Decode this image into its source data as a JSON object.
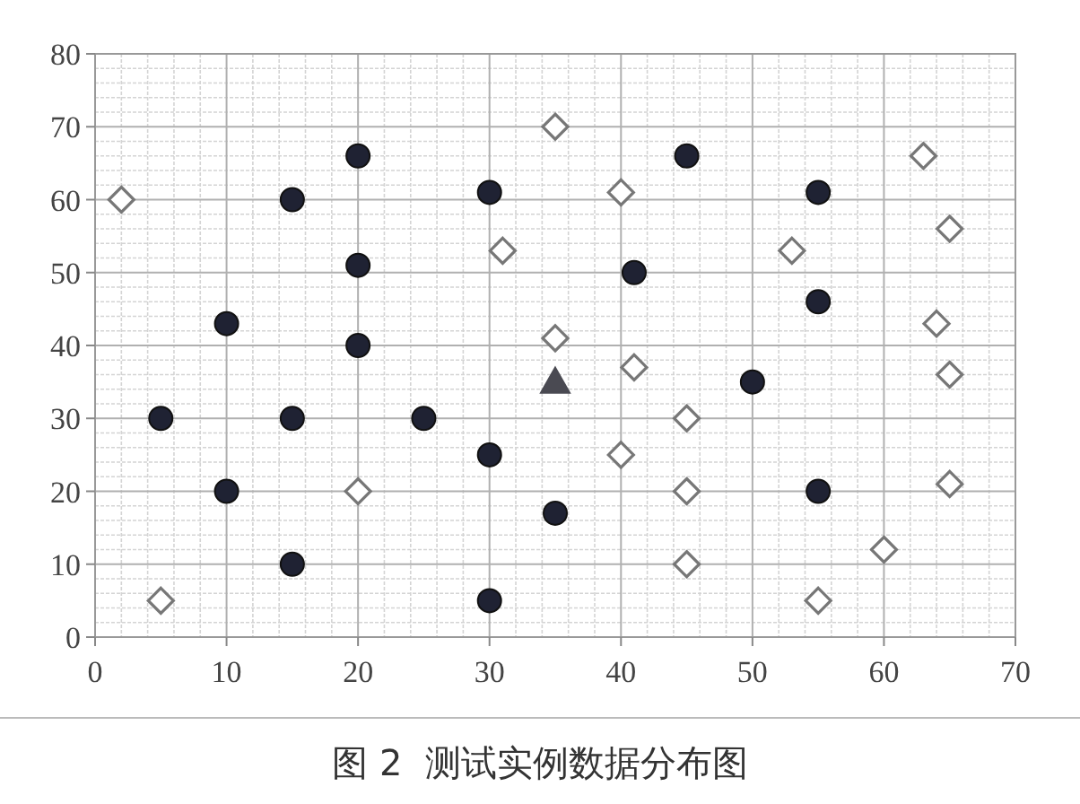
{
  "chart_data": {
    "type": "scatter",
    "title": "图 2  测试实例数据分布图",
    "xlim": [
      0,
      70
    ],
    "xticks": [
      0,
      10,
      20,
      30,
      40,
      50,
      60,
      70
    ],
    "ylim": [
      0,
      80
    ],
    "yticks": [
      0,
      10,
      20,
      30,
      40,
      50,
      60,
      70,
      80
    ],
    "grid": true,
    "series": [
      {
        "color": "#1f2233",
        "marker": "circle",
        "x": [
          5,
          10,
          10,
          15,
          15,
          15,
          20,
          20,
          20,
          25,
          30,
          30,
          30,
          35,
          41,
          45,
          50,
          55,
          55,
          55
        ],
        "values": [
          30,
          43,
          20,
          60,
          30,
          10,
          66,
          51,
          40,
          30,
          61,
          25,
          5,
          17,
          50,
          66,
          35,
          61,
          46,
          20
        ]
      },
      {
        "color": "#ffffff",
        "marker": "diamond",
        "x": [
          2,
          5,
          20,
          31,
          35,
          35,
          40,
          40,
          41,
          45,
          45,
          45,
          53,
          55,
          60,
          63,
          64,
          65,
          65,
          65
        ],
        "values": [
          60,
          5,
          20,
          53,
          70,
          41,
          61,
          25,
          37,
          30,
          20,
          10,
          53,
          5,
          12,
          66,
          43,
          56,
          36,
          21
        ]
      },
      {
        "color": "#4a4a52",
        "marker": "triangle",
        "x": [
          35
        ],
        "values": [
          35
        ]
      }
    ]
  }
}
